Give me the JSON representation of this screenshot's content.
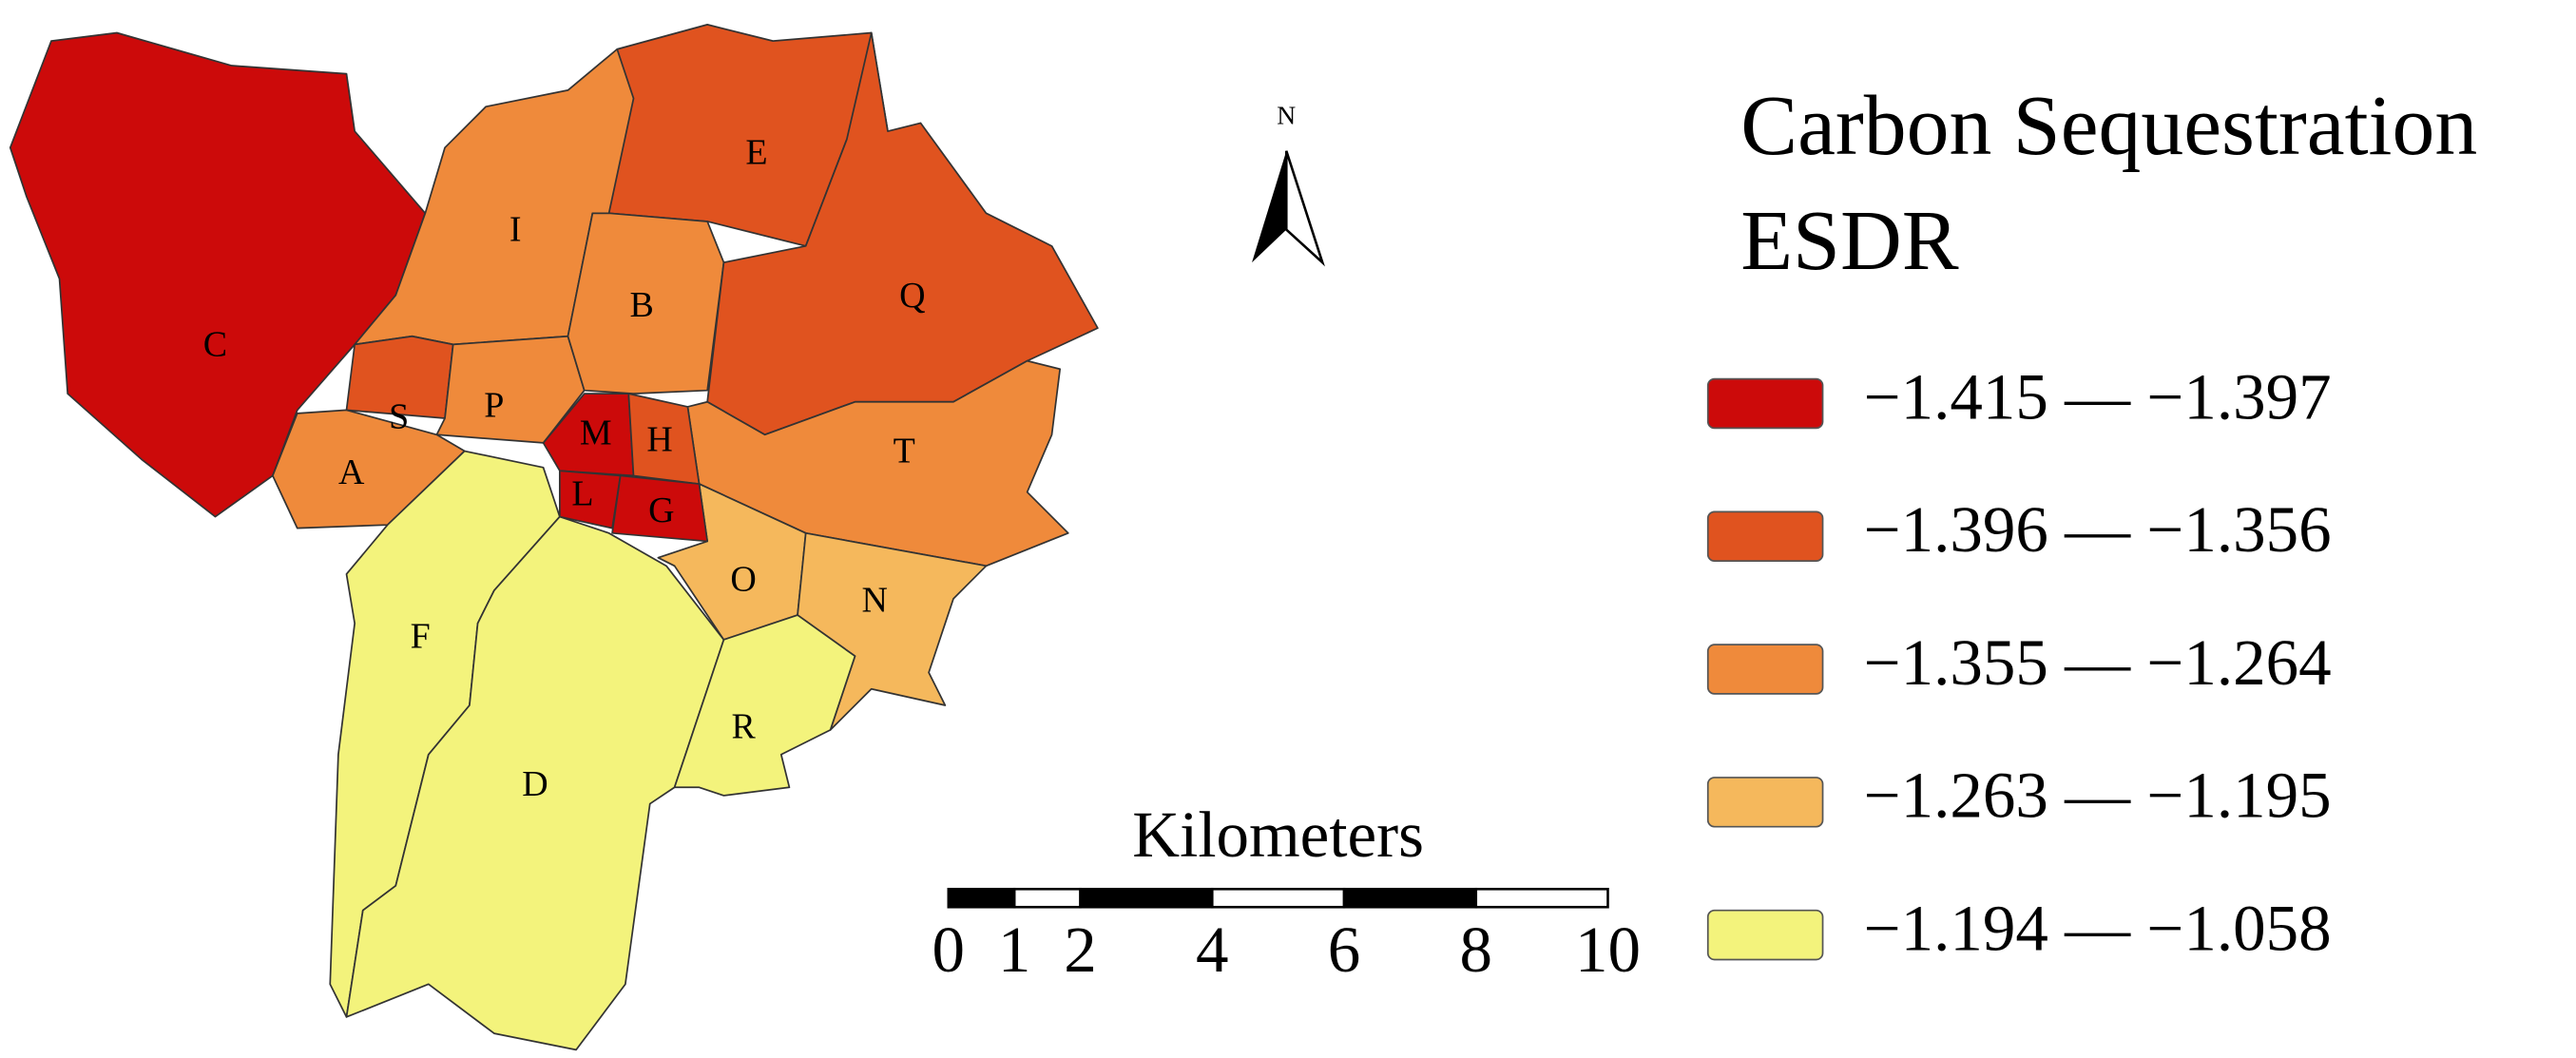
{
  "title_lines": [
    "Carbon Sequestration",
    "ESDR"
  ],
  "north_label": "N",
  "scale_bar": {
    "label": "Kilometers",
    "ticks": [
      0,
      1,
      2,
      4,
      6,
      8,
      10
    ]
  },
  "legend": [
    {
      "label": "−1.415 — −1.397",
      "color": "#cc0a0a"
    },
    {
      "label": "−1.396 — −1.356",
      "color": "#e0531f"
    },
    {
      "label": "−1.355 — −1.264",
      "color": "#ef8a3b"
    },
    {
      "label": "−1.263 — −1.195",
      "color": "#f5b85c"
    },
    {
      "label": "−1.194 — −1.058",
      "color": "#f3f37c"
    }
  ],
  "regions": [
    {
      "label": "C",
      "color": "#cc0a0a"
    },
    {
      "label": "I",
      "color": "#ef8a3b"
    },
    {
      "label": "S",
      "color": "#e0531f"
    },
    {
      "label": "P",
      "color": "#ef8a3b"
    },
    {
      "label": "A",
      "color": "#ef8a3b"
    },
    {
      "label": "E",
      "color": "#e0531f"
    },
    {
      "label": "B",
      "color": "#ef8a3b"
    },
    {
      "label": "Q",
      "color": "#e0531f"
    },
    {
      "label": "T",
      "color": "#ef8a3b"
    },
    {
      "label": "O",
      "color": "#f5b85c"
    },
    {
      "label": "N",
      "color": "#f5b85c"
    },
    {
      "label": "F",
      "color": "#f3f37c"
    },
    {
      "label": "D",
      "color": "#f3f37c"
    },
    {
      "label": "R",
      "color": "#f3f37c"
    },
    {
      "label": "M",
      "color": "#cc0a0a"
    },
    {
      "label": "H",
      "color": "#e0531f"
    },
    {
      "label": "L",
      "color": "#cc0a0a"
    },
    {
      "label": "G",
      "color": "#cc0a0a"
    }
  ]
}
